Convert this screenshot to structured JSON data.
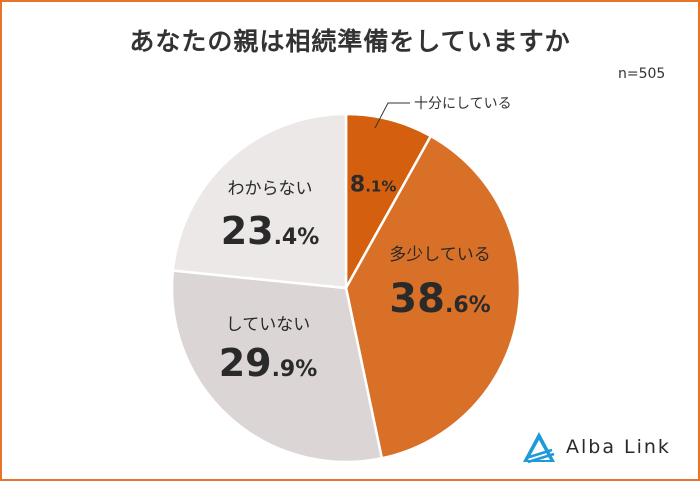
{
  "chart_data": {
    "type": "pie",
    "title": "あなたの親は相続準備をしていますか",
    "sample_size": "n=505",
    "slices": [
      {
        "label": "十分にしている",
        "value": 8.1,
        "int": "8",
        "dec": ".1%",
        "color": "#d4600f"
      },
      {
        "label": "多少している",
        "value": 38.6,
        "int": "38",
        "dec": ".6%",
        "color": "#d97028"
      },
      {
        "label": "していない",
        "value": 29.9,
        "int": "29",
        "dec": ".9%",
        "color": "#dbd6d5"
      },
      {
        "label": "わからない",
        "value": 23.4,
        "int": "23",
        "dec": ".4%",
        "color": "#ebe8e7"
      }
    ]
  },
  "brand": {
    "name": "Alba Link",
    "logo_color": "#1f9ad6"
  }
}
